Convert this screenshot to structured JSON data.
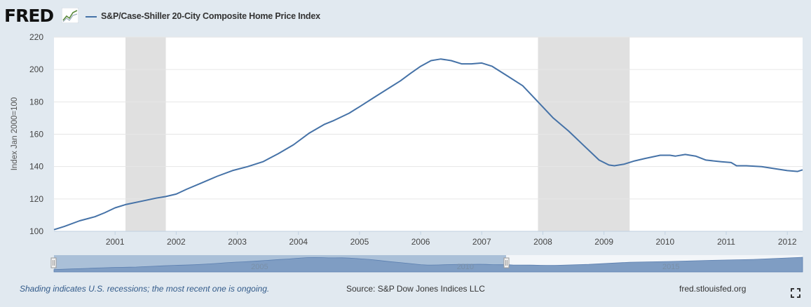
{
  "logo": {
    "text": "FRED"
  },
  "legend": {
    "label": "S&P/Case-Shiller 20-City Composite Home Price Index",
    "color": "#4572a7"
  },
  "chart_data": {
    "type": "line",
    "title": "S&P/Case-Shiller 20-City Composite Home Price Index",
    "ylabel": "Index Jan 2000=100",
    "xlabel": "",
    "ylim": [
      100,
      220
    ],
    "xlim": [
      2000.0,
      2012.25
    ],
    "yticks": [
      100,
      120,
      140,
      160,
      180,
      200,
      220
    ],
    "xticks": [
      2001,
      2002,
      2003,
      2004,
      2005,
      2006,
      2007,
      2008,
      2009,
      2010,
      2011,
      2012
    ],
    "grid": true,
    "recessions": [
      [
        2001.17,
        2001.83
      ],
      [
        2007.92,
        2009.42
      ]
    ],
    "series": [
      {
        "name": "S&P/Case-Shiller 20-City Composite Home Price Index",
        "color": "#4572a7",
        "x": [
          2000.0,
          2000.17,
          2000.42,
          2000.67,
          2000.83,
          2001.0,
          2001.17,
          2001.42,
          2001.67,
          2001.83,
          2002.0,
          2002.17,
          2002.42,
          2002.67,
          2002.92,
          2003.17,
          2003.42,
          2003.67,
          2003.92,
          2004.17,
          2004.42,
          2004.58,
          2004.83,
          2005.0,
          2005.25,
          2005.5,
          2005.67,
          2005.83,
          2006.0,
          2006.17,
          2006.33,
          2006.5,
          2006.67,
          2006.83,
          2007.0,
          2007.17,
          2007.42,
          2007.67,
          2007.92,
          2008.17,
          2008.42,
          2008.67,
          2008.92,
          2009.08,
          2009.17,
          2009.33,
          2009.5,
          2009.67,
          2009.92,
          2010.08,
          2010.17,
          2010.33,
          2010.5,
          2010.67,
          2010.92,
          2011.08,
          2011.17,
          2011.33,
          2011.58,
          2011.83,
          2012.0,
          2012.17,
          2012.25
        ],
        "values": [
          101,
          103,
          106.5,
          109,
          111.5,
          114.5,
          116.5,
          118.5,
          120.5,
          121.5,
          123,
          126,
          130,
          134,
          137.5,
          140,
          143,
          148,
          153.5,
          160.5,
          166,
          168.5,
          173,
          177,
          183,
          189,
          193,
          197.5,
          202,
          205.5,
          206.5,
          205.5,
          203.5,
          203.5,
          204,
          202,
          196,
          190,
          180,
          170,
          162,
          153,
          144,
          141,
          140.5,
          141.5,
          143.5,
          145,
          147,
          147,
          146.5,
          147.5,
          146.5,
          144,
          143,
          142.5,
          140.5,
          140.5,
          140,
          138.5,
          137.5,
          137,
          138
        ]
      }
    ],
    "navigator": {
      "labels": [
        "2005",
        "2010",
        "2015"
      ]
    }
  },
  "footer": {
    "note": "Shading indicates U.S. recessions; the most recent one is ongoing.",
    "source": "Source: S&P Dow Jones Indices LLC",
    "url": "fred.stlouisfed.org"
  }
}
